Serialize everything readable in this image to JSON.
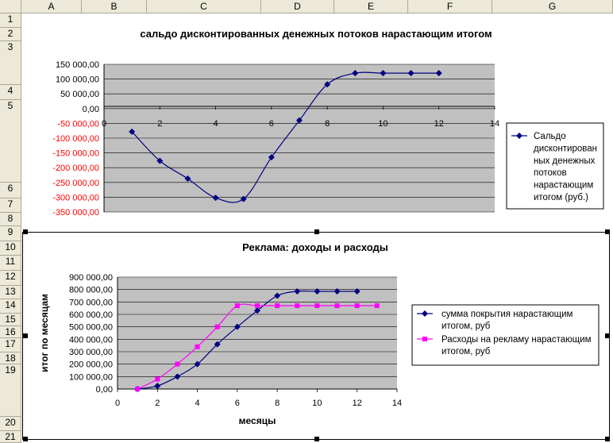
{
  "spreadsheet": {
    "columns": [
      "A",
      "B",
      "C",
      "D",
      "E",
      "F",
      "G"
    ],
    "rows": [
      "1",
      "2",
      "3",
      "4",
      "5",
      "6",
      "7",
      "8",
      "9",
      "10",
      "11",
      "12",
      "13",
      "14",
      "15",
      "16",
      "17",
      "18",
      "19",
      "20",
      "21"
    ]
  },
  "chart_data": [
    {
      "type": "line",
      "title": "сальдо дисконтированных денежных потоков нарастающим итогом",
      "xlabel": "",
      "ylabel": "",
      "xlim": [
        0,
        14
      ],
      "ylim": [
        -350000,
        150000
      ],
      "x_ticks": [
        "0",
        "2",
        "4",
        "6",
        "8",
        "10",
        "12",
        "14"
      ],
      "y_ticks": [
        "150 000,00",
        "100 000,00",
        "50 000,00",
        "0,00",
        "-50 000,00",
        "-100 000,00",
        "-150 000,00",
        "-200 000,00",
        "-250 000,00",
        "-300 000,00",
        "-350 000,00"
      ],
      "negative_tick_color": "#ff0000",
      "plot_background": "#c0c0c0",
      "grid": true,
      "legend_position": "right",
      "series": [
        {
          "name": "Сальдо дисконтированных денежных потоков нарастающим итогом (руб.)",
          "legend_lines": [
            "Сальдо",
            "дисконтирован",
            "ных денежных",
            "потоков",
            "нарастающим",
            "итогом (руб.)"
          ],
          "color": "#000080",
          "marker": "diamond",
          "x": [
            1,
            2,
            3,
            4,
            5,
            6,
            7,
            8,
            9,
            10,
            11,
            12
          ],
          "y": [
            -78000,
            -177000,
            -237000,
            -302000,
            -306000,
            -165000,
            -40000,
            82000,
            120000,
            120000,
            120000,
            120000
          ]
        }
      ]
    },
    {
      "type": "line",
      "title": "Реклама: доходы и расходы",
      "xlabel": "месяцы",
      "ylabel": "итог по месяцам",
      "xlim": [
        0,
        14
      ],
      "ylim": [
        0,
        900000
      ],
      "x_ticks": [
        "0",
        "2",
        "4",
        "6",
        "8",
        "10",
        "12",
        "14"
      ],
      "y_ticks": [
        "900 000,00",
        "800 000,00",
        "700 000,00",
        "600 000,00",
        "500 000,00",
        "400 000,00",
        "300 000,00",
        "200 000,00",
        "100 000,00",
        "0,00"
      ],
      "plot_background": "#c0c0c0",
      "grid": true,
      "legend_position": "right",
      "series": [
        {
          "name": "сумма покрытия нарастающим итогом, руб",
          "legend_lines": [
            "сумма покрытия нарастающим",
            "итогом, руб"
          ],
          "color": "#000080",
          "marker": "diamond",
          "x": [
            1,
            2,
            3,
            4,
            5,
            6,
            7,
            8,
            9,
            10,
            11,
            12
          ],
          "y": [
            0,
            25000,
            100000,
            200000,
            360000,
            500000,
            630000,
            750000,
            785000,
            785000,
            785000,
            785000
          ]
        },
        {
          "name": "Расходы на рекламу нарастающим итогом, руб",
          "legend_lines": [
            "Расходы на рекламу нарастающим",
            "итогом, руб"
          ],
          "color": "#ff00ff",
          "marker": "square",
          "x": [
            1,
            2,
            3,
            4,
            5,
            6,
            7,
            8,
            9,
            10,
            11,
            12,
            13
          ],
          "y": [
            0,
            80000,
            200000,
            340000,
            500000,
            670000,
            670000,
            670000,
            670000,
            670000,
            670000,
            670000,
            670000
          ]
        }
      ]
    }
  ]
}
